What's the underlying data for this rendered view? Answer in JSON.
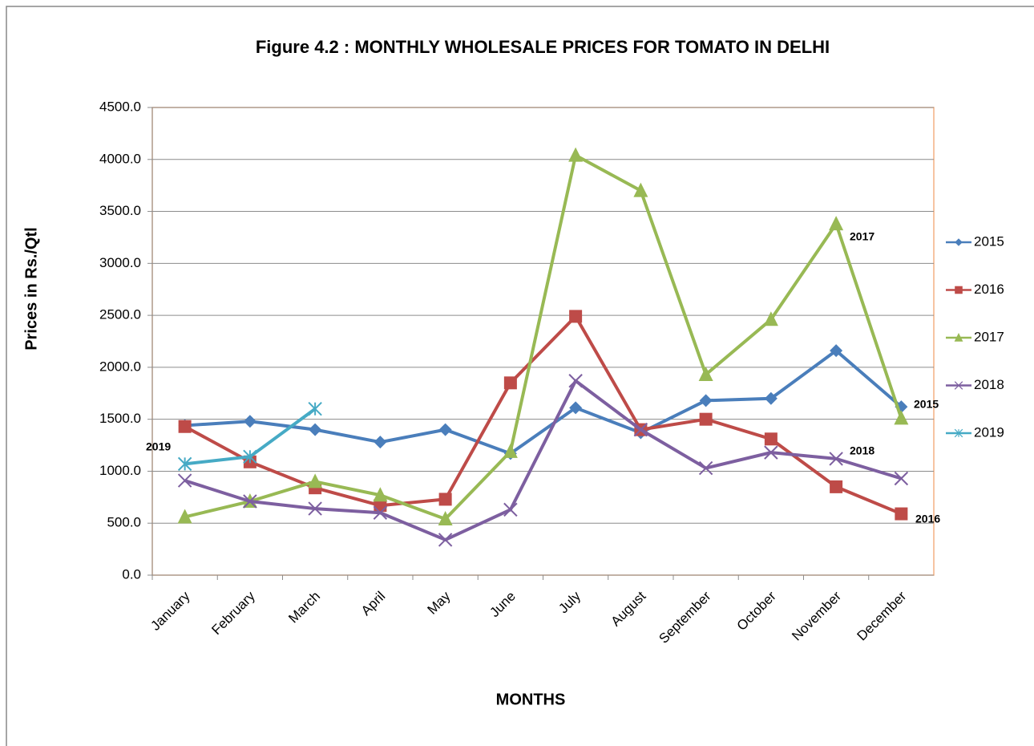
{
  "chart_data": {
    "type": "line",
    "title": "Figure 4.2 : MONTHLY WHOLESALE PRICES FOR TOMATO IN DELHI",
    "x_label": "MONTHS",
    "y_label": "Prices in Rs./Qtl",
    "categories": [
      "January",
      "February",
      "March",
      "April",
      "May",
      "June",
      "July",
      "August",
      "September",
      "October",
      "November",
      "December"
    ],
    "series": [
      {
        "name": "2015",
        "color": "#4a7ebb",
        "marker": "diamond",
        "values": [
          1440,
          1480,
          1400,
          1280,
          1400,
          1170,
          1610,
          1370,
          1680,
          1700,
          2160,
          1620
        ]
      },
      {
        "name": "2016",
        "color": "#be4b48",
        "marker": "square",
        "values": [
          1430,
          1090,
          840,
          670,
          730,
          1850,
          2490,
          1400,
          1500,
          1310,
          850,
          590
        ]
      },
      {
        "name": "2017",
        "color": "#98b954",
        "marker": "triangle",
        "values": [
          560,
          710,
          900,
          770,
          540,
          1190,
          4040,
          3700,
          1930,
          2460,
          3380,
          1510
        ]
      },
      {
        "name": "2018",
        "color": "#7d5fa0",
        "marker": "x",
        "values": [
          910,
          710,
          640,
          600,
          340,
          630,
          1870,
          1400,
          1030,
          1180,
          1120,
          930
        ]
      },
      {
        "name": "2019",
        "color": "#46aac5",
        "marker": "asterisk",
        "values": [
          1070,
          1140,
          1600,
          null,
          null,
          null,
          null,
          null,
          null,
          null,
          null,
          null
        ]
      }
    ],
    "ylim": [
      0,
      4500
    ],
    "yticks": [
      {
        "value": 0,
        "label": "0.0"
      },
      {
        "value": 500,
        "label": "500.0"
      },
      {
        "value": 1000,
        "label": "1000.0"
      },
      {
        "value": 1500,
        "label": "1500.0"
      },
      {
        "value": 2000,
        "label": "2000.0"
      },
      {
        "value": 2500,
        "label": "2500.0"
      },
      {
        "value": 3000,
        "label": "3000.0"
      },
      {
        "value": 3500,
        "label": "3500.0"
      },
      {
        "value": 4000,
        "label": "4000.0"
      },
      {
        "value": 4500,
        "label": "4500.0"
      }
    ],
    "grid": true,
    "legend": "right",
    "annotations": [
      "2019",
      "2017",
      "2015",
      "2018",
      "2016"
    ]
  }
}
